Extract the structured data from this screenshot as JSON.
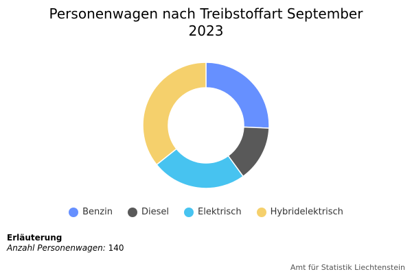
{
  "chart_data": {
    "type": "pie",
    "title": "Personenwagen nach Treibstoffart September 2023",
    "categories": [
      "Benzin",
      "Diesel",
      "Elektrisch",
      "Hybridelektrisch"
    ],
    "values": [
      36,
      20,
      34,
      50
    ],
    "colors": [
      "#6690ff",
      "#595959",
      "#47c3f0",
      "#f5d06c"
    ],
    "legend_position": "bottom",
    "donut": true
  },
  "title_line1": "Personenwagen nach Treibstoffart September",
  "title_line2": "2023",
  "note": {
    "heading": "Erläuterung",
    "key": "Anzahl Personenwagen:",
    "value": "140"
  },
  "credit": "Amt für Statistik Liechtenstein"
}
